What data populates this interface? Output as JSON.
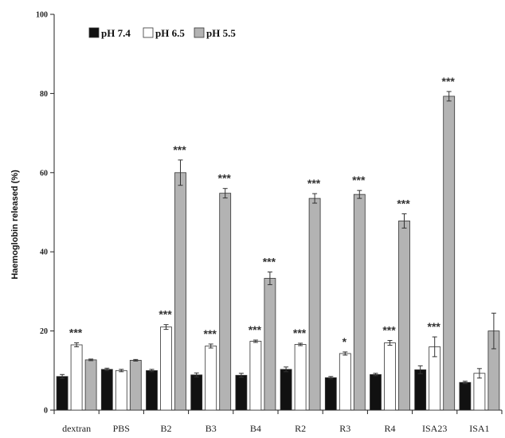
{
  "chart_data": {
    "type": "bar",
    "title": "",
    "xlabel": "",
    "ylabel": "Haemoglobin released (%)",
    "ylim": [
      0,
      100
    ],
    "yticks": [
      0,
      20,
      40,
      60,
      80,
      100
    ],
    "grid": false,
    "legend_position": "top-left",
    "categories": [
      "dextran",
      "PBS",
      "B2",
      "B3",
      "B4",
      "R2",
      "R3",
      "R4",
      "ISA23",
      "ISA1"
    ],
    "series": [
      {
        "name": "pH 7.4",
        "color": "#111111",
        "values": [
          8.5,
          10.3,
          10.0,
          8.9,
          8.8,
          10.3,
          8.2,
          9.0,
          10.2,
          7.0
        ],
        "errors": [
          0.5,
          0.3,
          0.3,
          0.5,
          0.5,
          0.6,
          0.3,
          0.3,
          1.0,
          0.3
        ],
        "significance": [
          "",
          "",
          "",
          "",
          "",
          "",
          "",
          "",
          "",
          ""
        ]
      },
      {
        "name": "pH 6.5",
        "color": "#ffffff",
        "values": [
          16.5,
          10.0,
          21.0,
          16.2,
          17.4,
          16.6,
          14.3,
          17.0,
          16.0,
          9.3
        ],
        "errors": [
          0.5,
          0.3,
          0.6,
          0.5,
          0.3,
          0.3,
          0.4,
          0.6,
          2.5,
          1.2
        ],
        "significance": [
          "***",
          "",
          "***",
          "***",
          "***",
          "***",
          "*",
          "***",
          "***",
          ""
        ]
      },
      {
        "name": "pH 5.5",
        "color": "#b3b3b3",
        "values": [
          12.7,
          12.6,
          60.0,
          54.8,
          33.3,
          53.5,
          54.5,
          47.8,
          79.3,
          20.0
        ],
        "errors": [
          0.2,
          0.2,
          3.2,
          1.2,
          1.6,
          1.2,
          1.0,
          1.8,
          1.2,
          4.5
        ],
        "significance": [
          "",
          "",
          "***",
          "***",
          "***",
          "***",
          "***",
          "***",
          "***",
          ""
        ]
      }
    ]
  }
}
